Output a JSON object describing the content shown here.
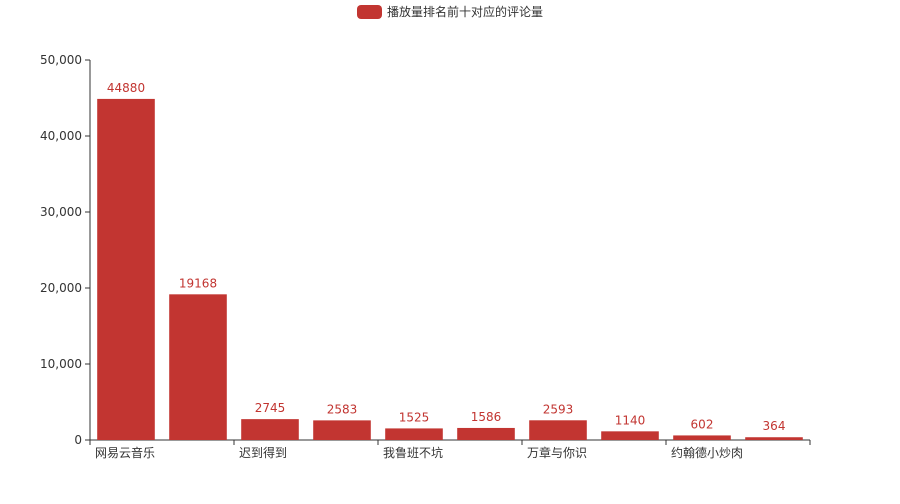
{
  "chart_data": {
    "type": "bar",
    "legend": {
      "label": "播放量排名前十对应的评论量",
      "position": "top-center",
      "color": "#c23531"
    },
    "categories": [
      "网易云音乐",
      "",
      "迟到得到",
      "",
      "我鲁班不坑",
      "",
      "万章与你识",
      "",
      "约翰德小炒肉",
      ""
    ],
    "series": [
      {
        "name": "播放量排名前十对应的评论量",
        "values": [
          44880,
          19168,
          2745,
          2583,
          1525,
          1586,
          2593,
          1140,
          602,
          364
        ]
      }
    ],
    "data_labels": [
      "44880",
      "19168",
      "2745",
      "2583",
      "1525",
      "1586",
      "2593",
      "1140",
      "602",
      "364"
    ],
    "y_ticks": [
      "0",
      "10,000",
      "20,000",
      "30,000",
      "40,000",
      "50,000"
    ],
    "ylim": [
      0,
      50000
    ],
    "xlabel": "",
    "ylabel": "",
    "grid": false,
    "colors": {
      "bar": "#c23531",
      "axis": "#333333",
      "text": "#333333"
    }
  }
}
